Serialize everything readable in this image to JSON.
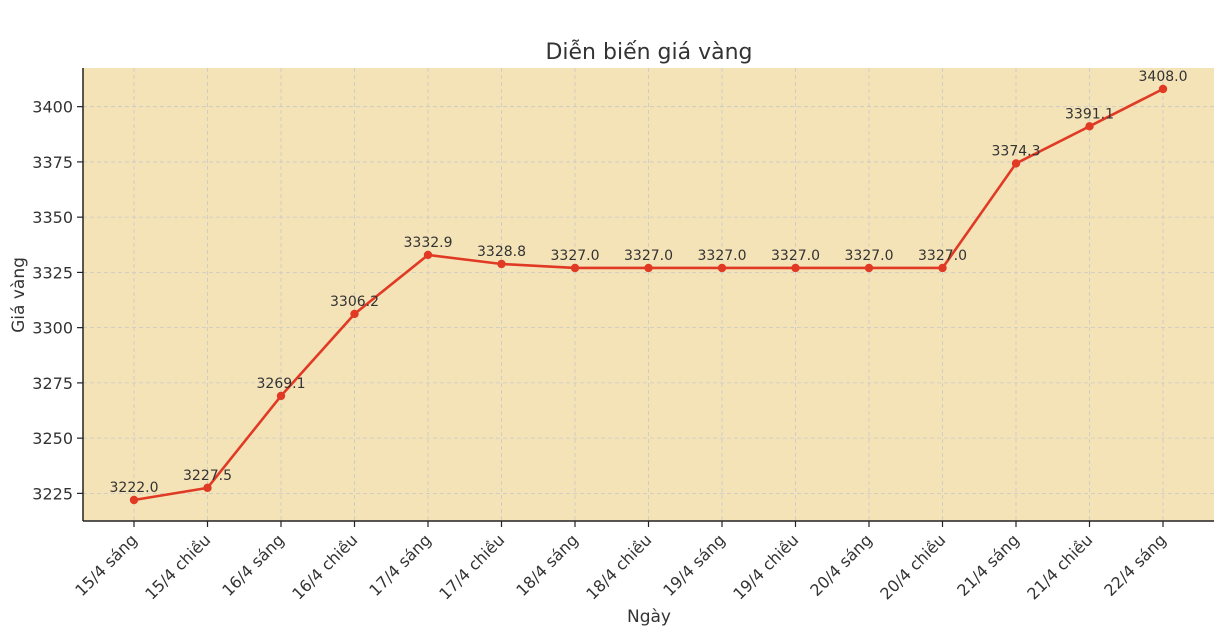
{
  "chart_data": {
    "type": "line",
    "title": "Diễn biến giá vàng",
    "xlabel": "Ngày",
    "ylabel": "Giá vàng",
    "categories": [
      "15/4 sáng",
      "15/4 chiều",
      "16/4 sáng",
      "16/4 chiều",
      "17/4 sáng",
      "17/4 chiều",
      "18/4 sáng",
      "18/4 chiều",
      "19/4 sáng",
      "19/4 chiều",
      "20/4 sáng",
      "20/4 chiều",
      "21/4 sáng",
      "21/4 chiều",
      "22/4 sáng"
    ],
    "series": [
      {
        "values": [
          3222.0,
          3227.5,
          3269.1,
          3306.2,
          3332.9,
          3328.8,
          3327.0,
          3327.0,
          3327.0,
          3327.0,
          3327.0,
          3327.0,
          3374.3,
          3391.1,
          3408.0
        ],
        "labels": [
          "3222.0",
          "3227.5",
          "3269.1",
          "3306.2",
          "3332.9",
          "3328.8",
          "3327.0",
          "3327.0",
          "3327.0",
          "3327.0",
          "3327.0",
          "3327.0",
          "3374.3",
          "3391.1",
          "3408.0"
        ]
      }
    ],
    "yticks": [
      "3225",
      "3250",
      "3275",
      "3300",
      "3325",
      "3350",
      "3375",
      "3400"
    ],
    "ylim": [
      3212.5,
      3417.5
    ],
    "grid": true,
    "colors": {
      "line": "#e03a25",
      "background": "#f5e3b8",
      "grid": "#c8c8c8",
      "axis": "#222222"
    }
  }
}
